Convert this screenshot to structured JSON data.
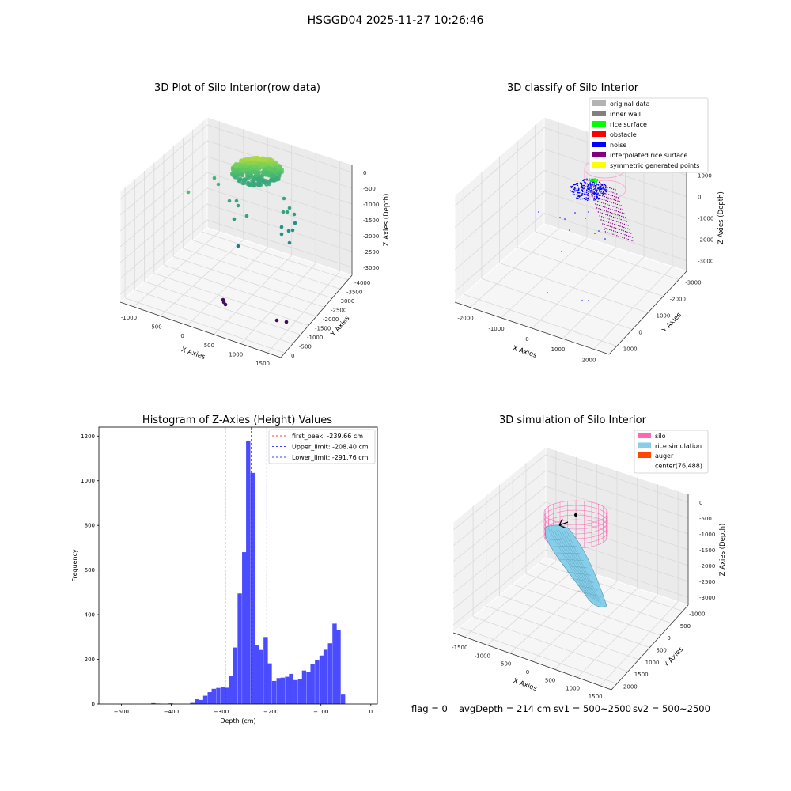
{
  "figure": {
    "suptitle": "HSGGD04 2025-11-27 10:26:46"
  },
  "colors": {
    "original_data": "#b3b3b3",
    "inner_wall": "#808080",
    "rice_surface": "#00ff00",
    "obstacle": "#ff0000",
    "noise": "#0000ff",
    "interpolated_rice_surface": "#800080",
    "symmetric_generated_points": "#ffff00",
    "silo": "#ff69b4",
    "rice_simulation": "#87ceeb",
    "auger": "#ff4500",
    "hist_bar": "#4b4bff",
    "peak_line": "#ff0000",
    "limit_line": "#0000ff"
  },
  "chart_data": [
    {
      "type": "scatter3d",
      "title": "3D Plot of Silo Interior(row data)",
      "xlabel": "X Axies",
      "ylabel": "Y Axies",
      "zlabel": "Z Axies (Depth)",
      "xticks": [
        "-1000",
        "-500",
        "0",
        "500",
        "1000",
        "1500"
      ],
      "yticks": [
        "0",
        "-500",
        "-1000",
        "-1500",
        "-2000",
        "-2500",
        "-3000",
        "-3500",
        "-4000"
      ],
      "zticks": [
        "0",
        "-500",
        "-1000",
        "-1500",
        "-2000",
        "-2500",
        "-3000"
      ],
      "colormap": "viridis"
    },
    {
      "type": "scatter3d",
      "title": "3D classify of Silo Interior",
      "xlabel": "X Axies",
      "ylabel": "Y Axies",
      "zlabel": "Z Axies (Depth)",
      "xticks": [
        "-2000",
        "-1000",
        "0",
        "1000",
        "2000"
      ],
      "yticks": [
        "1000",
        "0",
        "-1000",
        "-2000",
        "-3000"
      ],
      "zticks": [
        "1000",
        "0",
        "-1000",
        "-2000",
        "-3000"
      ],
      "legend": [
        "original data",
        "inner wall",
        "rice surface",
        "obstacle",
        "noise",
        "interpolated rice surface",
        "symmetric generated points"
      ],
      "legend_placement": "top-right"
    },
    {
      "type": "bar",
      "title": "Histogram of Z-Axies (Height) Values",
      "xlabel": "Depth (cm)",
      "ylabel": "Frequency",
      "xlim": [
        -545,
        13
      ],
      "ylim": [
        0,
        1240
      ],
      "xticks": [
        -500,
        -400,
        -300,
        -200,
        -100,
        0
      ],
      "yticks": [
        0,
        200,
        400,
        600,
        800,
        1000,
        1200
      ],
      "bin_width": 8.6,
      "bins": [
        [
          -440,
          4
        ],
        [
          -431,
          2
        ],
        [
          -405,
          3
        ],
        [
          -362,
          5
        ],
        [
          -353,
          21
        ],
        [
          -344,
          18
        ],
        [
          -336,
          37
        ],
        [
          -327,
          53
        ],
        [
          -319,
          68
        ],
        [
          -310,
          72
        ],
        [
          -301,
          75
        ],
        [
          -293,
          73
        ],
        [
          -284,
          126
        ],
        [
          -276,
          253
        ],
        [
          -267,
          495
        ],
        [
          -258,
          680
        ],
        [
          -250,
          1180
        ],
        [
          -241,
          1035
        ],
        [
          -232,
          262
        ],
        [
          -224,
          242
        ],
        [
          -215,
          300
        ],
        [
          -207,
          182
        ],
        [
          -198,
          103
        ],
        [
          -189,
          116
        ],
        [
          -181,
          118
        ],
        [
          -172,
          122
        ],
        [
          -164,
          135
        ],
        [
          -155,
          107
        ],
        [
          -146,
          112
        ],
        [
          -138,
          150
        ],
        [
          -129,
          145
        ],
        [
          -121,
          178
        ],
        [
          -112,
          195
        ],
        [
          -103,
          217
        ],
        [
          -95,
          243
        ],
        [
          -86,
          272
        ],
        [
          -77,
          360
        ],
        [
          -69,
          330
        ],
        [
          -60,
          42
        ]
      ],
      "lines": [
        {
          "label": "first_peak: -239.66 cm",
          "x": -239.66,
          "style": "red"
        },
        {
          "label": "Upper_limit: -208.40 cm",
          "x": -208.4,
          "style": "blue"
        },
        {
          "label": "Lower_limit: -291.76 cm",
          "x": -291.76,
          "style": "blue"
        }
      ],
      "legend_placement": "top-right"
    },
    {
      "type": "surface3d",
      "title": "3D simulation of Silo Interior",
      "xlabel": "X Axies",
      "ylabel": "Y Axies",
      "zlabel": "Z Axies (Depth)",
      "xticks": [
        "-1500",
        "-1000",
        "-500",
        "0",
        "500",
        "1000",
        "1500"
      ],
      "yticks": [
        "2000",
        "1500",
        "1000",
        "500",
        "0",
        "-500",
        "-1000"
      ],
      "zticks": [
        "0",
        "-500",
        "-1000",
        "-1500",
        "-2000",
        "-2500",
        "-3000"
      ],
      "legend": [
        "silo",
        "rice simulation",
        "auger",
        "center(76,488)"
      ],
      "legend_placement": "top-right"
    }
  ],
  "status": {
    "flag": "flag = 0",
    "avg_depth": "avgDepth = 214 cm",
    "sv1": "sv1 = 500~2500",
    "sv2": "sv2 = 500~2500"
  }
}
